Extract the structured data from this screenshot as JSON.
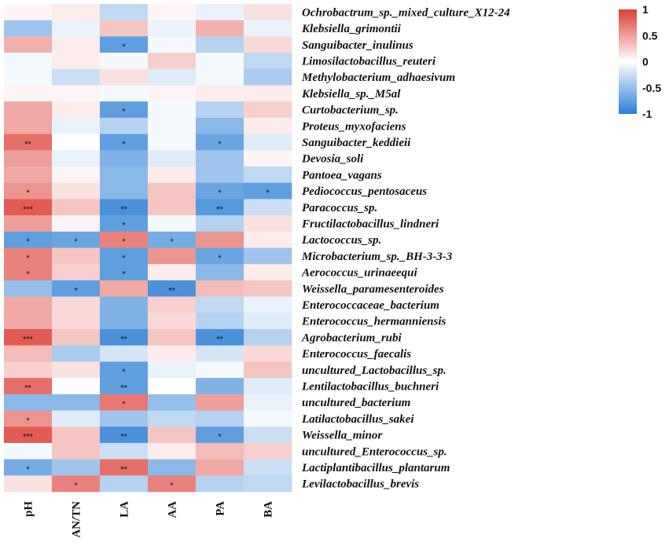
{
  "chart_data": {
    "type": "heatmap",
    "title": "",
    "columns": [
      "pH",
      "AN/TN",
      "LA",
      "AA",
      "PA",
      "BA"
    ],
    "rows": [
      "Ochrobactrum_sp._mixed_culture_X12-24",
      "Klebsiella_grimontii",
      "Sanguibacter_inulinus",
      "Limosilactobacillus_reuteri",
      "Methylobacterium_adhaesivum",
      "Klebsiella_sp._M5al",
      "Curtobacterium_sp.",
      "Proteus_myxofaciens",
      "Sanguibacter_keddieii",
      "Devosia_soli",
      "Pantoea_vagans",
      "Pediococcus_pentosaceus",
      "Paracoccus_sp.",
      "Fructilactobacillus_lindneri",
      "Lactococcus_sp.",
      "Microbacterium_sp._BH-3-3-3",
      "Aerococcus_urinaeequi",
      "Weissella_paramesenteroides",
      "Enterococcaceae_bacterium",
      "Enterococcus_hermanniensis",
      "Agrobacterium_rubi",
      "Enterococcus_faecalis",
      "uncultured_Lactobacillus_sp.",
      "Lentilactobacillus_buchneri",
      "uncultured_bacterium",
      "Latilactobacillus_sakei",
      "Weissella_minor",
      "uncultured_Enterococcus_sp.",
      "Lactiplantibacillus_plantarum",
      "Levilactobacillus_brevis"
    ],
    "values": [
      [
        0.05,
        0.1,
        -0.3,
        0.05,
        -0.1,
        0.15
      ],
      [
        -0.45,
        -0.1,
        0.3,
        -0.1,
        0.4,
        -0.1
      ],
      [
        0.4,
        0.1,
        -0.75,
        -0.05,
        -0.35,
        0.2
      ],
      [
        -0.05,
        0.1,
        -0.05,
        0.25,
        -0.05,
        -0.3
      ],
      [
        -0.05,
        -0.25,
        0.15,
        -0.15,
        -0.05,
        -0.4
      ],
      [
        0.05,
        0.05,
        -0.05,
        0.05,
        0.1,
        0.1
      ],
      [
        0.45,
        0.1,
        -0.75,
        -0.05,
        -0.35,
        0.25
      ],
      [
        0.45,
        -0.1,
        -0.35,
        -0.05,
        -0.55,
        0.1
      ],
      [
        0.75,
        0.0,
        -0.75,
        -0.05,
        -0.7,
        -0.15
      ],
      [
        0.5,
        -0.1,
        -0.6,
        -0.15,
        -0.45,
        0.05
      ],
      [
        0.45,
        0.05,
        -0.55,
        0.1,
        -0.45,
        -0.3
      ],
      [
        0.55,
        0.15,
        -0.55,
        0.3,
        -0.7,
        -0.75
      ],
      [
        0.85,
        0.3,
        -0.85,
        0.3,
        -0.8,
        -0.25
      ],
      [
        0.5,
        0.05,
        -0.75,
        -0.05,
        -0.35,
        0.15
      ],
      [
        -0.75,
        -0.7,
        0.65,
        -0.65,
        0.55,
        0.1
      ],
      [
        0.65,
        0.3,
        -0.75,
        0.55,
        -0.7,
        -0.45
      ],
      [
        0.65,
        0.25,
        -0.75,
        0.1,
        -0.55,
        0.1
      ],
      [
        -0.5,
        -0.75,
        0.45,
        -0.85,
        0.35,
        0.3
      ],
      [
        0.45,
        0.2,
        -0.6,
        0.25,
        -0.3,
        -0.1
      ],
      [
        0.45,
        0.2,
        -0.6,
        0.2,
        -0.35,
        -0.15
      ],
      [
        0.85,
        0.3,
        -0.85,
        0.3,
        -0.85,
        -0.35
      ],
      [
        0.35,
        -0.4,
        -0.2,
        0.1,
        -0.2,
        0.2
      ],
      [
        0.25,
        0.15,
        -0.75,
        -0.1,
        -0.05,
        0.3
      ],
      [
        0.75,
        0.0,
        -0.75,
        0.0,
        -0.6,
        -0.15
      ],
      [
        -0.55,
        -0.55,
        0.7,
        -0.5,
        0.5,
        -0.1
      ],
      [
        0.55,
        -0.15,
        -0.45,
        -0.3,
        -0.35,
        -0.05
      ],
      [
        0.85,
        0.3,
        -0.85,
        0.3,
        -0.75,
        -0.25
      ],
      [
        -0.05,
        0.3,
        -0.25,
        0.1,
        0.35,
        0.25
      ],
      [
        -0.65,
        -0.45,
        0.75,
        -0.55,
        0.45,
        -0.25
      ],
      [
        0.15,
        0.65,
        -0.35,
        0.65,
        -0.35,
        -0.3
      ]
    ],
    "significance": [
      [
        "",
        "",
        "",
        "",
        "",
        ""
      ],
      [
        "",
        "",
        "",
        "",
        "",
        ""
      ],
      [
        "",
        "",
        "*",
        "",
        "",
        ""
      ],
      [
        "",
        "",
        "",
        "",
        "",
        ""
      ],
      [
        "",
        "",
        "",
        "",
        "",
        ""
      ],
      [
        "",
        "",
        "",
        "",
        "",
        ""
      ],
      [
        "",
        "",
        "*",
        "",
        "",
        ""
      ],
      [
        "",
        "",
        "",
        "",
        "",
        ""
      ],
      [
        "**",
        "",
        "*",
        "",
        "*",
        ""
      ],
      [
        "",
        "",
        "",
        "",
        "",
        ""
      ],
      [
        "",
        "",
        "",
        "",
        "",
        ""
      ],
      [
        "*",
        "",
        "",
        "",
        "*",
        "*"
      ],
      [
        "***",
        "",
        "**",
        "",
        "**",
        ""
      ],
      [
        "",
        "",
        "*",
        "",
        "",
        ""
      ],
      [
        "*",
        "*",
        "*",
        "*",
        "",
        ""
      ],
      [
        "*",
        "",
        "*",
        "",
        "*",
        ""
      ],
      [
        "*",
        "",
        "*",
        "",
        "",
        ""
      ],
      [
        "",
        "*",
        "",
        "**",
        "",
        ""
      ],
      [
        "",
        "",
        "",
        "",
        "",
        ""
      ],
      [
        "",
        "",
        "",
        "",
        "",
        ""
      ],
      [
        "***",
        "",
        "**",
        "",
        "**",
        ""
      ],
      [
        "",
        "",
        "",
        "",
        "",
        ""
      ],
      [
        "",
        "",
        "*",
        "",
        "",
        ""
      ],
      [
        "**",
        "",
        "**",
        "",
        "",
        ""
      ],
      [
        "",
        "",
        "*",
        "",
        "",
        ""
      ],
      [
        "*",
        "",
        "",
        "",
        "",
        ""
      ],
      [
        "***",
        "",
        "**",
        "",
        "*",
        ""
      ],
      [
        "",
        "",
        "",
        "",
        "",
        ""
      ],
      [
        "*",
        "",
        "**",
        "",
        "",
        ""
      ],
      [
        "",
        "*",
        "",
        "*",
        "",
        ""
      ]
    ],
    "colorbar": {
      "range": [
        -1,
        1
      ],
      "ticks": [
        1,
        0.5,
        0,
        -0.5,
        -1
      ],
      "tick_labels": [
        "1",
        "0.5",
        "0",
        "-0.5",
        "-1"
      ],
      "colors": {
        "high": "#dd3f35",
        "mid": "#ffffff",
        "low": "#2b7fd4"
      }
    }
  }
}
